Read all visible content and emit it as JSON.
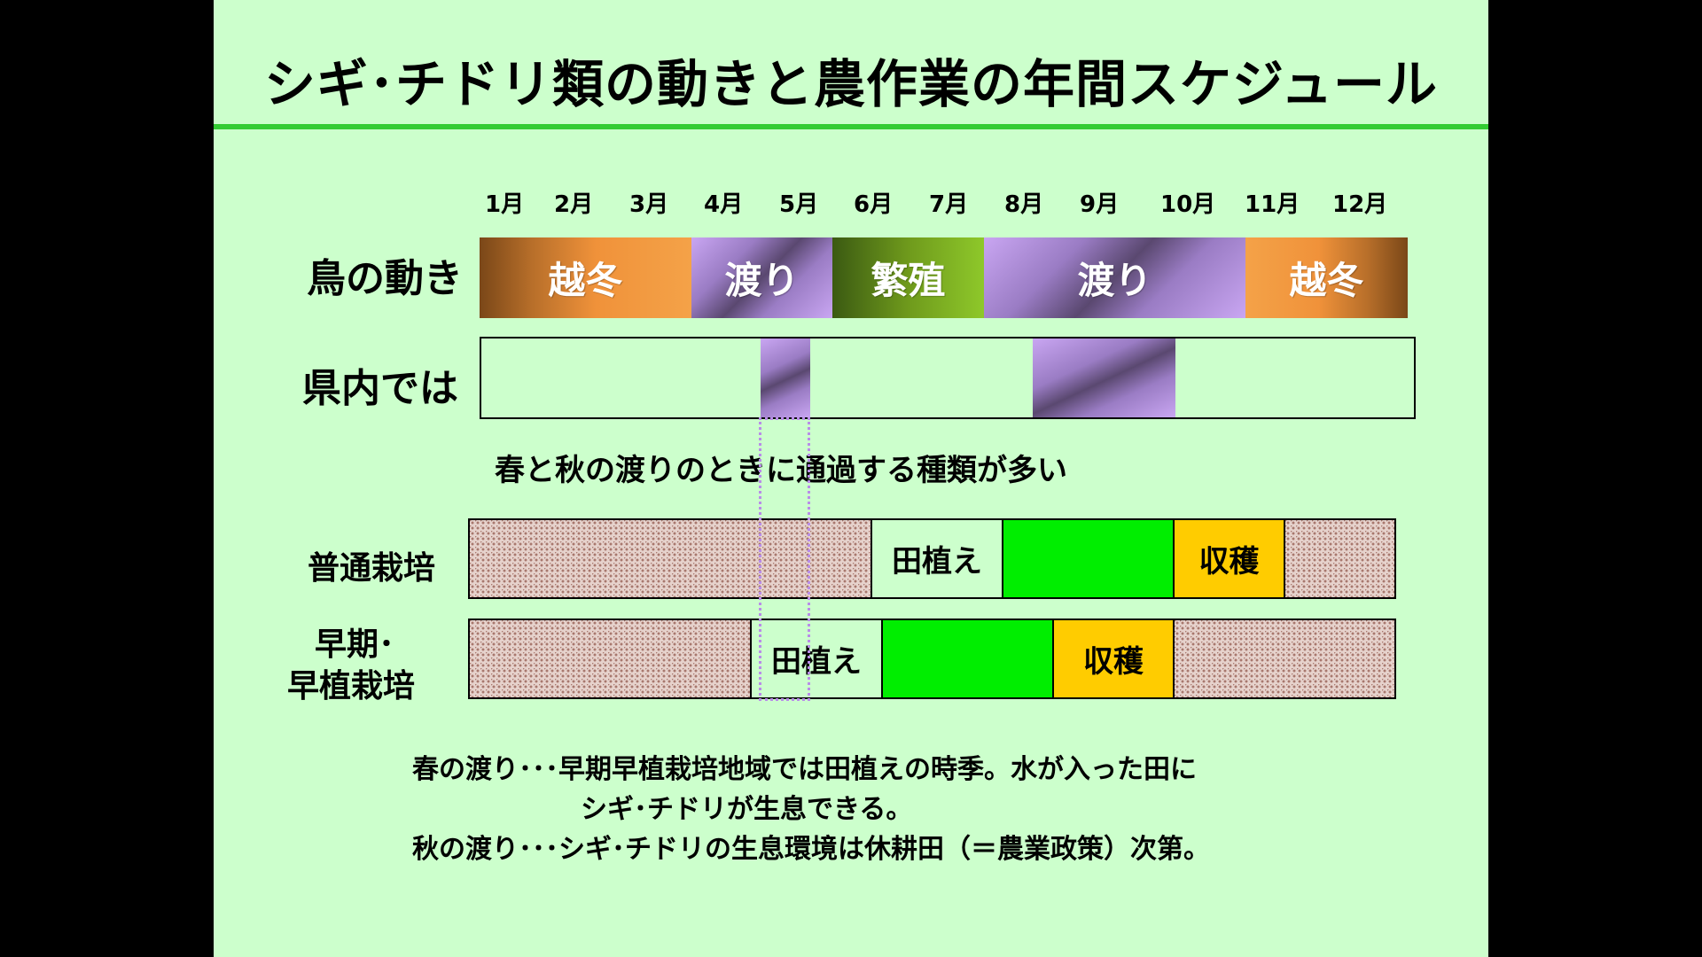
{
  "title": "シギ･チドリ類の動きと農作業の年間スケジュール",
  "months": [
    "1月",
    "2月",
    "3月",
    "4月",
    "5月",
    "6月",
    "7月",
    "8月",
    "9月",
    "10月",
    "11月",
    "12月"
  ],
  "bird_movement": {
    "label": "鳥の動き",
    "segments": [
      {
        "label": "越冬"
      },
      {
        "label": "渡り"
      },
      {
        "label": "繁殖"
      },
      {
        "label": "渡り"
      },
      {
        "label": "越冬"
      }
    ]
  },
  "in_prefecture": {
    "label": "県内では",
    "caption": "春と秋の渡りのときに通過する種類が多い"
  },
  "normal_cultivation": {
    "label": "普通栽培",
    "planting": "田植え",
    "harvest": "収穫"
  },
  "early_cultivation": {
    "label_line1": "早期･",
    "label_line2": "早植栽培",
    "planting": "田植え",
    "harvest": "収穫"
  },
  "notes": {
    "line1": "春の渡り･･･早期早植栽培地域では田植えの時季。水が入った田に",
    "line2": "シギ･チドリが生息できる。",
    "line3": "秋の渡り･･･シギ･チドリの生息環境は休耕田（＝農業政策）次第。"
  },
  "colors": {
    "background": "#ccffcc",
    "title_rule": "#33cc33",
    "migration": "#9a7cc4",
    "wintering": "#f0923a",
    "breeding": "#6f9a1c",
    "growing": "#00ee00",
    "harvest": "#ffcc00"
  }
}
